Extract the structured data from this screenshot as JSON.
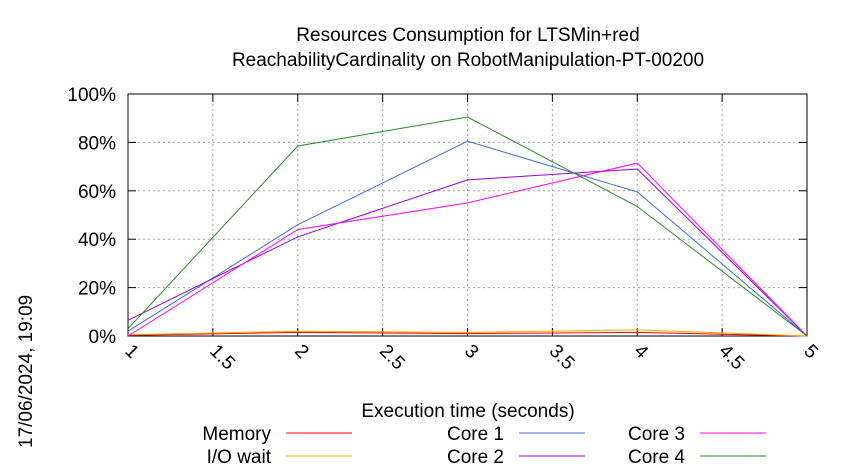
{
  "chart_data": {
    "type": "line",
    "title_line1": "Resources Consumption for LTSMin+red",
    "title_line2": "ReachabilityCardinality on RobotManipulation-PT-00200",
    "xlabel": "Execution time (seconds)",
    "ylabel": "",
    "timestamp": "17/06/2024, 19:09",
    "xlim": [
      1,
      5
    ],
    "ylim": [
      0,
      100
    ],
    "x_ticks": [
      "1",
      "1.5",
      "2",
      "2.5",
      "3",
      "3.5",
      "4",
      "4.5",
      "5"
    ],
    "y_ticks": [
      "0%",
      "20%",
      "40%",
      "60%",
      "80%",
      "100%"
    ],
    "grid": true,
    "legend_position": "bottom",
    "series": [
      {
        "name": "Memory",
        "color": "#ff0000",
        "x": [
          1,
          2,
          3,
          4,
          5
        ],
        "y": [
          0.3,
          1.5,
          1.0,
          1.5,
          0
        ]
      },
      {
        "name": "I/O wait",
        "color": "#ffa500",
        "x": [
          1,
          2,
          3,
          4,
          5
        ],
        "y": [
          0.5,
          2.0,
          1.5,
          2.5,
          0
        ]
      },
      {
        "name": "Core 1",
        "color": "#4169e1",
        "x": [
          1,
          2,
          3,
          4,
          5
        ],
        "y": [
          2,
          46,
          80.5,
          59.5,
          0
        ]
      },
      {
        "name": "Core 2",
        "color": "#9400d3",
        "x": [
          1,
          2,
          3,
          4,
          5
        ],
        "y": [
          6.5,
          41,
          64.5,
          69,
          0
        ]
      },
      {
        "name": "Core 3",
        "color": "#ff00ff",
        "x": [
          1,
          2,
          3,
          4,
          5
        ],
        "y": [
          0,
          44,
          55,
          71.5,
          0
        ]
      },
      {
        "name": "Core 4",
        "color": "#228b22",
        "x": [
          1,
          2,
          3,
          4,
          5
        ],
        "y": [
          3,
          78.5,
          90.5,
          53.5,
          0
        ]
      }
    ]
  }
}
